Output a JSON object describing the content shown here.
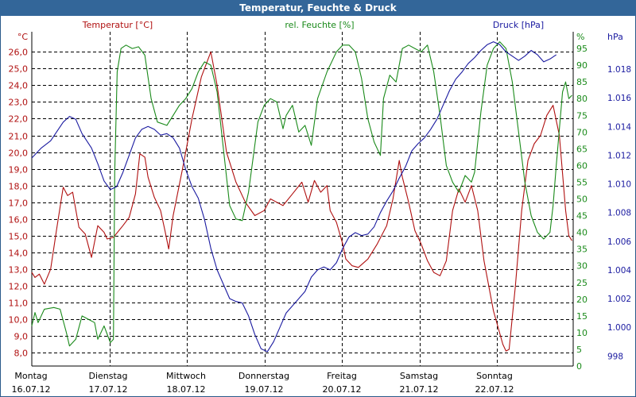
{
  "window": {
    "title": "Temperatur, Feuchte & Druck"
  },
  "colors": {
    "title_bg": "#336699",
    "temperature": "#b01010",
    "humidity": "#1a8a1a",
    "pressure": "#1a1aa0",
    "grid": "#000000"
  },
  "chart_data": {
    "type": "line",
    "title": "Temperatur, Feuchte & Druck",
    "x_days": [
      {
        "weekday": "Montag",
        "date": "16.07.12"
      },
      {
        "weekday": "Dienstag",
        "date": "17.07.12"
      },
      {
        "weekday": "Mittwoch",
        "date": "18.07.12"
      },
      {
        "weekday": "Donnerstag",
        "date": "19.07.12"
      },
      {
        "weekday": "Freitag",
        "date": "20.07.12"
      },
      {
        "weekday": "Samstag",
        "date": "21.07.12"
      },
      {
        "weekday": "Sonntag",
        "date": "22.07.12"
      }
    ],
    "x_range_days": [
      0,
      7
    ],
    "axes": {
      "temperature": {
        "label": "Temperatur [°C]",
        "unit": "°C",
        "min": 7.2,
        "max": 27.2,
        "ticks": [
          "8,0",
          "9,0",
          "10,0",
          "11,0",
          "12,0",
          "13,0",
          "14,0",
          "15,0",
          "16,0",
          "17,0",
          "18,0",
          "19,0",
          "20,0",
          "21,0",
          "22,0",
          "23,0",
          "24,0",
          "25,0",
          "26,0"
        ],
        "tick_values": [
          8,
          9,
          10,
          11,
          12,
          13,
          14,
          15,
          16,
          17,
          18,
          19,
          20,
          21,
          22,
          23,
          24,
          25,
          26
        ]
      },
      "humidity": {
        "label": "rel. Feuchte [%]",
        "unit": "%",
        "min": 0,
        "max": 100,
        "ticks": [
          "0",
          "5",
          "10",
          "15",
          "20",
          "25",
          "30",
          "35",
          "40",
          "45",
          "50",
          "55",
          "60",
          "65",
          "70",
          "75",
          "80",
          "85",
          "90",
          "95"
        ],
        "tick_values": [
          0,
          5,
          10,
          15,
          20,
          25,
          30,
          35,
          40,
          45,
          50,
          55,
          60,
          65,
          70,
          75,
          80,
          85,
          90,
          95
        ]
      },
      "pressure": {
        "label": "Druck [hPa]",
        "unit": "hPa",
        "min": 997.3,
        "max": 1020.6,
        "ticks": [
          "998",
          "1.000",
          "1.002",
          "1.004",
          "1.006",
          "1.008",
          "1.010",
          "1.012",
          "1.014",
          "1.016",
          "1.018"
        ],
        "tick_values": [
          998,
          1000,
          1002,
          1004,
          1006,
          1008,
          1010,
          1012,
          1014,
          1016,
          1018
        ]
      }
    },
    "series": [
      {
        "name": "Temperatur [°C]",
        "axis": "temperature",
        "points": [
          [
            0,
            12.8
          ],
          [
            0.05,
            12.5
          ],
          [
            0.12,
            12.7
          ],
          [
            0.2,
            12.1
          ],
          [
            0.3,
            13.0
          ],
          [
            0.4,
            15.5
          ],
          [
            0.5,
            17.9
          ],
          [
            0.57,
            17.4
          ],
          [
            0.65,
            17.6
          ],
          [
            0.75,
            15.5
          ],
          [
            0.85,
            15.1
          ],
          [
            0.95,
            13.7
          ],
          [
            1.05,
            15.6
          ],
          [
            1.15,
            15.2
          ],
          [
            1.2,
            14.8
          ],
          [
            1.3,
            14.9
          ],
          [
            1.45,
            15.6
          ],
          [
            1.55,
            16.1
          ],
          [
            1.65,
            17.5
          ],
          [
            1.72,
            19.9
          ],
          [
            1.8,
            19.7
          ],
          [
            1.85,
            18.5
          ],
          [
            1.95,
            17.3
          ],
          [
            2.05,
            16.5
          ],
          [
            2.12,
            15.3
          ],
          [
            2.18,
            14.2
          ],
          [
            2.25,
            16.2
          ],
          [
            2.4,
            19.0
          ],
          [
            2.55,
            22.0
          ],
          [
            2.7,
            24.5
          ],
          [
            2.85,
            26.0
          ],
          [
            2.95,
            24.0
          ],
          [
            3.1,
            20.0
          ],
          [
            3.25,
            18.2
          ],
          [
            3.4,
            17.0
          ],
          [
            3.55,
            16.2
          ],
          [
            3.7,
            16.5
          ],
          [
            3.8,
            17.2
          ],
          [
            3.9,
            17.0
          ],
          [
            4.0,
            16.8
          ],
          [
            4.15,
            17.5
          ],
          [
            4.3,
            18.2
          ],
          [
            4.4,
            17.0
          ],
          [
            4.5,
            18.3
          ],
          [
            4.6,
            17.6
          ],
          [
            4.7,
            18.0
          ],
          [
            4.75,
            16.5
          ],
          [
            4.85,
            15.8
          ],
          [
            4.95,
            14.5
          ],
          [
            5.0,
            13.6
          ],
          [
            5.1,
            13.2
          ],
          [
            5.2,
            13.1
          ],
          [
            5.35,
            13.6
          ],
          [
            5.5,
            14.5
          ],
          [
            5.65,
            15.6
          ],
          [
            5.75,
            17.2
          ],
          [
            5.85,
            19.5
          ],
          [
            5.9,
            18.5
          ],
          [
            6.0,
            17.0
          ],
          [
            6.1,
            15.3
          ],
          [
            6.2,
            14.5
          ],
          [
            6.3,
            13.5
          ],
          [
            6.4,
            12.8
          ],
          [
            6.5,
            12.6
          ],
          [
            6.6,
            13.5
          ],
          [
            6.7,
            16.5
          ],
          [
            6.8,
            17.8
          ],
          [
            6.9,
            17.0
          ],
          [
            6.95,
            17.5
          ],
          [
            7.0,
            18.0
          ],
          [
            7.1,
            16.5
          ],
          [
            7.2,
            13.5
          ],
          [
            7.35,
            10.5
          ],
          [
            7.5,
            8.5
          ],
          [
            7.55,
            8.1
          ],
          [
            7.6,
            8.2
          ],
          [
            7.7,
            12.0
          ],
          [
            7.8,
            16.5
          ],
          [
            7.9,
            19.5
          ],
          [
            8.0,
            20.5
          ],
          [
            8.1,
            21.0
          ],
          [
            8.2,
            22.2
          ],
          [
            8.3,
            22.8
          ],
          [
            8.4,
            21.0
          ],
          [
            8.5,
            16.5
          ],
          [
            8.55,
            15.0
          ],
          [
            8.6,
            14.7
          ]
        ]
      },
      {
        "name": "rel. Feuchte [%]",
        "axis": "humidity",
        "points": [
          [
            0,
            12.0
          ],
          [
            0.05,
            16.0
          ],
          [
            0.1,
            13.0
          ],
          [
            0.2,
            17.0
          ],
          [
            0.35,
            17.5
          ],
          [
            0.45,
            17.0
          ],
          [
            0.55,
            10.0
          ],
          [
            0.6,
            6.0
          ],
          [
            0.7,
            8.0
          ],
          [
            0.8,
            15.0
          ],
          [
            0.9,
            14.0
          ],
          [
            1.0,
            13.0
          ],
          [
            1.05,
            8.0
          ],
          [
            1.15,
            12.0
          ],
          [
            1.25,
            7.0
          ],
          [
            1.3,
            8.0
          ],
          [
            1.32,
            58.0
          ],
          [
            1.36,
            88.0
          ],
          [
            1.42,
            95.0
          ],
          [
            1.5,
            96.0
          ],
          [
            1.6,
            95.0
          ],
          [
            1.7,
            95.5
          ],
          [
            1.8,
            93.0
          ],
          [
            1.9,
            80.0
          ],
          [
            2.0,
            73.0
          ],
          [
            2.15,
            72.0
          ],
          [
            2.25,
            75.0
          ],
          [
            2.35,
            78.0
          ],
          [
            2.45,
            80.0
          ],
          [
            2.55,
            83.0
          ],
          [
            2.65,
            88.0
          ],
          [
            2.75,
            91.0
          ],
          [
            2.85,
            90.0
          ],
          [
            2.95,
            82.0
          ],
          [
            3.05,
            65.0
          ],
          [
            3.15,
            48.0
          ],
          [
            3.25,
            44.0
          ],
          [
            3.35,
            43.5
          ],
          [
            3.45,
            52.0
          ],
          [
            3.6,
            73.0
          ],
          [
            3.7,
            78.0
          ],
          [
            3.8,
            80.0
          ],
          [
            3.9,
            79.0
          ],
          [
            4.0,
            71.0
          ],
          [
            4.05,
            75.0
          ],
          [
            4.15,
            78.0
          ],
          [
            4.25,
            70.0
          ],
          [
            4.35,
            72.0
          ],
          [
            4.45,
            66.0
          ],
          [
            4.55,
            80.0
          ],
          [
            4.7,
            88.0
          ],
          [
            4.85,
            94.0
          ],
          [
            4.95,
            96.0
          ],
          [
            5.05,
            96.0
          ],
          [
            5.15,
            94.0
          ],
          [
            5.25,
            86.0
          ],
          [
            5.35,
            74.0
          ],
          [
            5.45,
            67.0
          ],
          [
            5.55,
            63.0
          ],
          [
            5.6,
            80.0
          ],
          [
            5.7,
            87.0
          ],
          [
            5.8,
            85.0
          ],
          [
            5.9,
            95.0
          ],
          [
            6.0,
            96.0
          ],
          [
            6.1,
            95.0
          ],
          [
            6.2,
            94.0
          ],
          [
            6.3,
            96.0
          ],
          [
            6.4,
            88.0
          ],
          [
            6.5,
            75.0
          ],
          [
            6.6,
            60.0
          ],
          [
            6.7,
            55.0
          ],
          [
            6.8,
            52.0
          ],
          [
            6.9,
            57.0
          ],
          [
            7.0,
            55.0
          ],
          [
            7.05,
            58.0
          ],
          [
            7.15,
            76.0
          ],
          [
            7.25,
            90.0
          ],
          [
            7.35,
            95.0
          ],
          [
            7.45,
            97.0
          ],
          [
            7.55,
            95.0
          ],
          [
            7.65,
            85.0
          ],
          [
            7.75,
            70.0
          ],
          [
            7.85,
            55.0
          ],
          [
            7.95,
            45.0
          ],
          [
            8.05,
            40.0
          ],
          [
            8.15,
            38.0
          ],
          [
            8.25,
            40.0
          ],
          [
            8.3,
            48.0
          ],
          [
            8.35,
            60.0
          ],
          [
            8.45,
            82.0
          ],
          [
            8.5,
            85.0
          ],
          [
            8.55,
            80.0
          ],
          [
            8.6,
            81.0
          ]
        ]
      },
      {
        "name": "Druck [hPa]",
        "axis": "pressure",
        "points": [
          [
            0,
            1011.8
          ],
          [
            0.15,
            1012.5
          ],
          [
            0.3,
            1013.0
          ],
          [
            0.5,
            1014.3
          ],
          [
            0.6,
            1014.7
          ],
          [
            0.7,
            1014.5
          ],
          [
            0.8,
            1013.5
          ],
          [
            0.95,
            1012.5
          ],
          [
            1.05,
            1011.4
          ],
          [
            1.15,
            1010.2
          ],
          [
            1.25,
            1009.6
          ],
          [
            1.35,
            1009.8
          ],
          [
            1.45,
            1010.8
          ],
          [
            1.55,
            1012.0
          ],
          [
            1.65,
            1013.2
          ],
          [
            1.75,
            1013.8
          ],
          [
            1.85,
            1014.0
          ],
          [
            1.95,
            1013.8
          ],
          [
            2.05,
            1013.4
          ],
          [
            2.15,
            1013.5
          ],
          [
            2.25,
            1013.2
          ],
          [
            2.35,
            1012.5
          ],
          [
            2.45,
            1011.0
          ],
          [
            2.55,
            1009.8
          ],
          [
            2.65,
            1009.0
          ],
          [
            2.75,
            1007.5
          ],
          [
            2.85,
            1005.5
          ],
          [
            2.95,
            1004.0
          ],
          [
            3.05,
            1003.0
          ],
          [
            3.15,
            1002.0
          ],
          [
            3.25,
            1001.8
          ],
          [
            3.35,
            1001.7
          ],
          [
            3.45,
            1000.8
          ],
          [
            3.55,
            999.5
          ],
          [
            3.65,
            998.5
          ],
          [
            3.75,
            998.3
          ],
          [
            3.85,
            999.0
          ],
          [
            3.95,
            1000.0
          ],
          [
            4.05,
            1001.0
          ],
          [
            4.15,
            1001.5
          ],
          [
            4.25,
            1002.0
          ],
          [
            4.35,
            1002.5
          ],
          [
            4.45,
            1003.5
          ],
          [
            4.55,
            1004.0
          ],
          [
            4.65,
            1004.2
          ],
          [
            4.75,
            1004.0
          ],
          [
            4.85,
            1004.5
          ],
          [
            4.95,
            1005.5
          ],
          [
            5.05,
            1006.3
          ],
          [
            5.15,
            1006.6
          ],
          [
            5.25,
            1006.4
          ],
          [
            5.35,
            1006.5
          ],
          [
            5.45,
            1007.0
          ],
          [
            5.55,
            1008.0
          ],
          [
            5.65,
            1008.8
          ],
          [
            5.75,
            1009.5
          ],
          [
            5.85,
            1010.4
          ],
          [
            5.95,
            1011.2
          ],
          [
            6.05,
            1012.3
          ],
          [
            6.15,
            1012.8
          ],
          [
            6.25,
            1013.2
          ],
          [
            6.35,
            1013.8
          ],
          [
            6.45,
            1014.5
          ],
          [
            6.55,
            1015.5
          ],
          [
            6.65,
            1016.5
          ],
          [
            6.75,
            1017.3
          ],
          [
            6.85,
            1017.8
          ],
          [
            6.95,
            1018.4
          ],
          [
            7.05,
            1018.8
          ],
          [
            7.15,
            1019.3
          ],
          [
            7.25,
            1019.7
          ],
          [
            7.35,
            1019.9
          ],
          [
            7.45,
            1019.7
          ],
          [
            7.55,
            1019.2
          ],
          [
            7.65,
            1018.9
          ],
          [
            7.75,
            1018.6
          ],
          [
            7.85,
            1018.9
          ],
          [
            7.95,
            1019.3
          ],
          [
            8.05,
            1019.0
          ],
          [
            8.15,
            1018.5
          ],
          [
            8.25,
            1018.7
          ],
          [
            8.35,
            1019.0
          ]
        ]
      }
    ]
  }
}
